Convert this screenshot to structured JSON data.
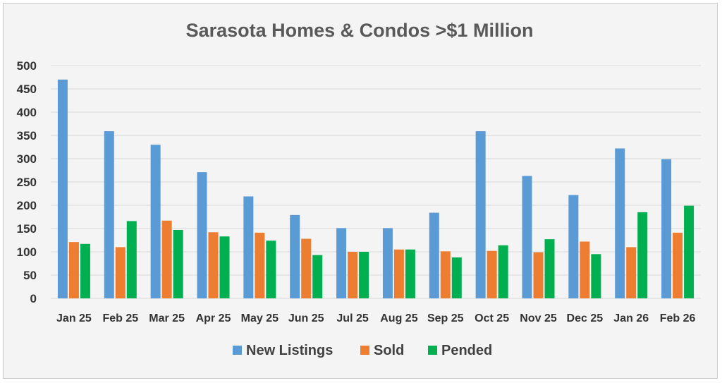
{
  "chart_data": {
    "type": "bar",
    "title": "Sarasota Homes & Condos >$1 Million",
    "xlabel": "",
    "ylabel": "",
    "ylim": [
      0,
      500
    ],
    "yticks": [
      0,
      50,
      100,
      150,
      200,
      250,
      300,
      350,
      400,
      450,
      500
    ],
    "grid": true,
    "legend_position": "bottom",
    "categories": [
      "Jan 25",
      "Feb 25",
      "Mar 25",
      "Apr 25",
      "May 25",
      "Jun 25",
      "Jul 25",
      "Aug 25",
      "Sep 25",
      "Oct 25",
      "Nov 25",
      "Dec 25",
      "Jan 26",
      "Feb 26"
    ],
    "series": [
      {
        "name": "New Listings",
        "color": "#5b9bd5",
        "values": [
          470,
          359,
          330,
          271,
          219,
          179,
          151,
          151,
          184,
          359,
          263,
          222,
          322,
          299
        ]
      },
      {
        "name": "Sold",
        "color": "#ed7d31",
        "values": [
          121,
          110,
          167,
          142,
          141,
          128,
          100,
          105,
          101,
          102,
          99,
          122,
          110,
          141
        ]
      },
      {
        "name": "Pended",
        "color": "#00b050",
        "values": [
          117,
          166,
          147,
          133,
          124,
          93,
          100,
          105,
          88,
          114,
          127,
          95,
          185,
          199
        ]
      }
    ]
  }
}
